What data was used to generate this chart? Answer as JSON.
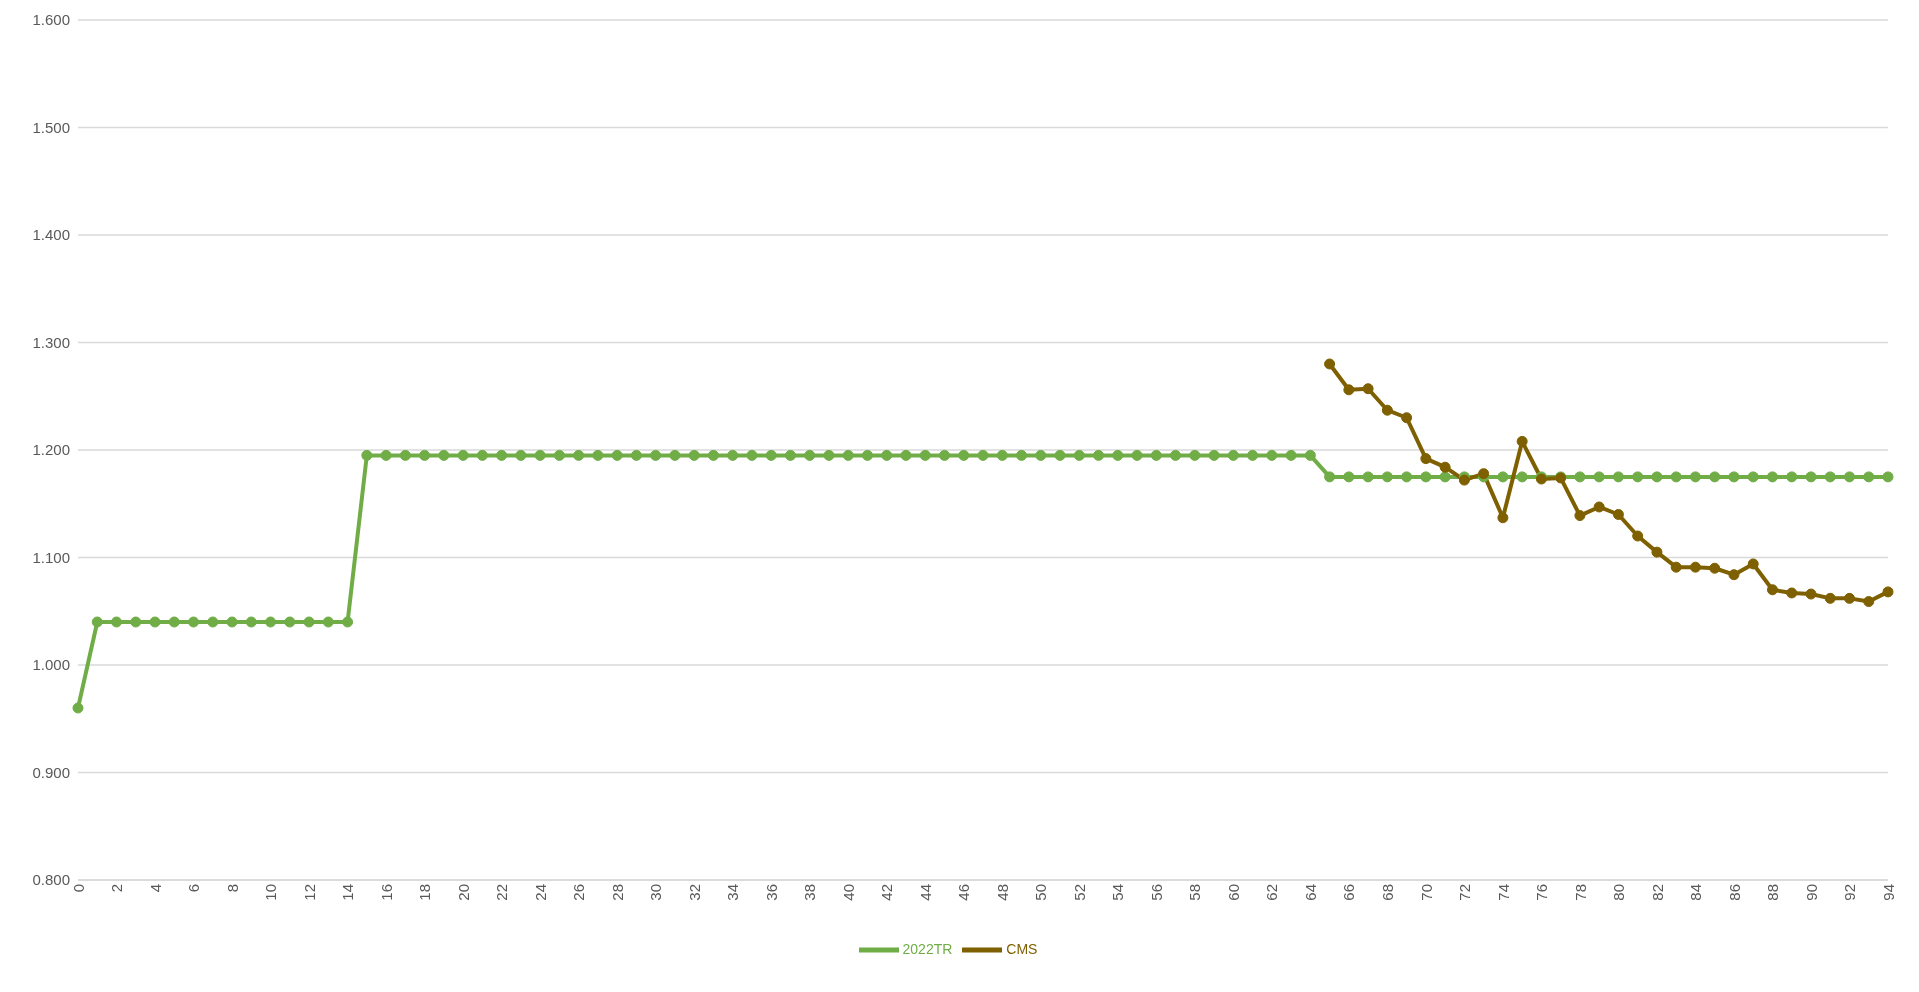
{
  "chart_data": {
    "type": "line",
    "categories": [
      "0",
      null,
      "2",
      null,
      "4",
      null,
      "6",
      null,
      "8",
      null,
      "10",
      null,
      "12",
      null,
      "14",
      null,
      "16",
      null,
      "18",
      null,
      "20",
      null,
      "22",
      null,
      "24",
      null,
      "26",
      null,
      "28",
      null,
      "30",
      null,
      "32",
      null,
      "34",
      null,
      "36",
      null,
      "38",
      null,
      "40",
      null,
      "42",
      null,
      "44",
      null,
      "46",
      null,
      "48",
      null,
      "50",
      null,
      "52",
      null,
      "54",
      null,
      "56",
      null,
      "58",
      null,
      "60",
      null,
      "62",
      null,
      "64",
      null,
      "66",
      null,
      "68",
      null,
      "70",
      null,
      "72",
      null,
      "74",
      null,
      "76",
      null,
      "78",
      null,
      "80",
      null,
      "82",
      null,
      "84",
      null,
      "86",
      null,
      "88",
      null,
      "90",
      null,
      "92",
      null,
      "94"
    ],
    "series": [
      {
        "name": "2022TR",
        "color": "#70ad47",
        "values": [
          0.96,
          1.04,
          1.04,
          1.04,
          1.04,
          1.04,
          1.04,
          1.04,
          1.04,
          1.04,
          1.04,
          1.04,
          1.04,
          1.04,
          1.04,
          1.195,
          1.195,
          1.195,
          1.195,
          1.195,
          1.195,
          1.195,
          1.195,
          1.195,
          1.195,
          1.195,
          1.195,
          1.195,
          1.195,
          1.195,
          1.195,
          1.195,
          1.195,
          1.195,
          1.195,
          1.195,
          1.195,
          1.195,
          1.195,
          1.195,
          1.195,
          1.195,
          1.195,
          1.195,
          1.195,
          1.195,
          1.195,
          1.195,
          1.195,
          1.195,
          1.195,
          1.195,
          1.195,
          1.195,
          1.195,
          1.195,
          1.195,
          1.195,
          1.195,
          1.195,
          1.195,
          1.195,
          1.195,
          1.195,
          1.195,
          1.175,
          1.175,
          1.175,
          1.175,
          1.175,
          1.175,
          1.175,
          1.175,
          1.175,
          1.175,
          1.175,
          1.175,
          1.175,
          1.175,
          1.175,
          1.175,
          1.175,
          1.175,
          1.175,
          1.175,
          1.175,
          1.175,
          1.175,
          1.175,
          1.175,
          1.175,
          1.175,
          1.175,
          1.175,
          1.175
        ]
      },
      {
        "name": "CMS",
        "color": "#7f6000",
        "values": [
          null,
          null,
          null,
          null,
          null,
          null,
          null,
          null,
          null,
          null,
          null,
          null,
          null,
          null,
          null,
          null,
          null,
          null,
          null,
          null,
          null,
          null,
          null,
          null,
          null,
          null,
          null,
          null,
          null,
          null,
          null,
          null,
          null,
          null,
          null,
          null,
          null,
          null,
          null,
          null,
          null,
          null,
          null,
          null,
          null,
          null,
          null,
          null,
          null,
          null,
          null,
          null,
          null,
          null,
          null,
          null,
          null,
          null,
          null,
          null,
          null,
          null,
          null,
          null,
          null,
          1.28,
          1.256,
          1.257,
          1.237,
          1.23,
          1.192,
          1.184,
          1.172,
          1.178,
          1.137,
          1.208,
          1.173,
          1.174,
          1.139,
          1.147,
          1.14,
          1.12,
          1.105,
          1.091,
          1.091,
          1.09,
          1.084,
          1.094,
          1.07,
          1.067,
          1.066,
          1.062,
          1.062,
          1.059,
          1.068
        ]
      }
    ],
    "ylim": [
      0.8,
      1.6
    ],
    "yticks": [
      {
        "value": 0.8,
        "label": "0.800"
      },
      {
        "value": 0.9,
        "label": "0.900"
      },
      {
        "value": 1.0,
        "label": "1.000"
      },
      {
        "value": 1.1,
        "label": "1.100"
      },
      {
        "value": 1.2,
        "label": "1.200"
      },
      {
        "value": 1.3,
        "label": "1.300"
      },
      {
        "value": 1.4,
        "label": "1.400"
      },
      {
        "value": 1.5,
        "label": "1.500"
      },
      {
        "value": 1.6,
        "label": "1.600"
      }
    ],
    "grid": "y",
    "legend": "bottom",
    "marker": "circle",
    "line_style": "solid"
  }
}
